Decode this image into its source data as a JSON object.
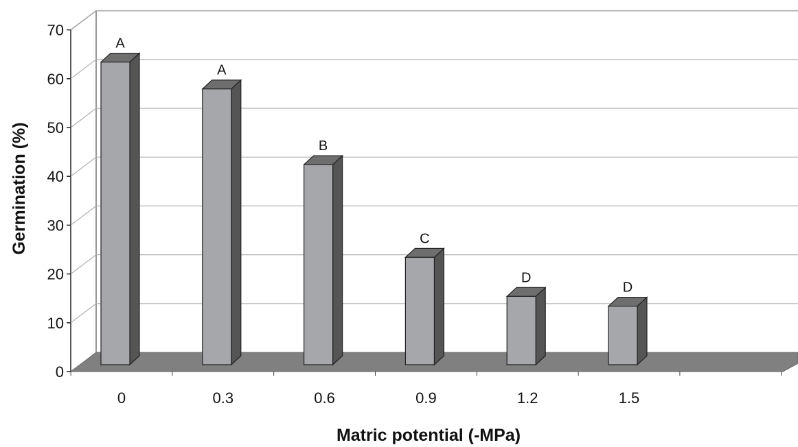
{
  "chart_data": {
    "type": "bar",
    "title": "",
    "xlabel": "Matric potential (-MPa)",
    "ylabel": "Germination (%)",
    "categories": [
      "0",
      "0.3",
      "0.6",
      "0.9",
      "1.2",
      "1.5"
    ],
    "values": [
      62,
      56.5,
      41,
      22,
      14,
      12
    ],
    "bar_labels": [
      "A",
      "A",
      "B",
      "C",
      "D",
      "D"
    ],
    "ylim": [
      0,
      70
    ],
    "yticks": [
      0,
      10,
      20,
      30,
      40,
      50,
      60,
      70
    ],
    "grid": true,
    "style": "3d",
    "colors": {
      "bar_front": "#a6a7ab",
      "bar_side": "#555555",
      "bar_top": "#6e6e6e",
      "floor": "#808080",
      "grid": "#b0b0b0",
      "outline": "#222222"
    }
  }
}
